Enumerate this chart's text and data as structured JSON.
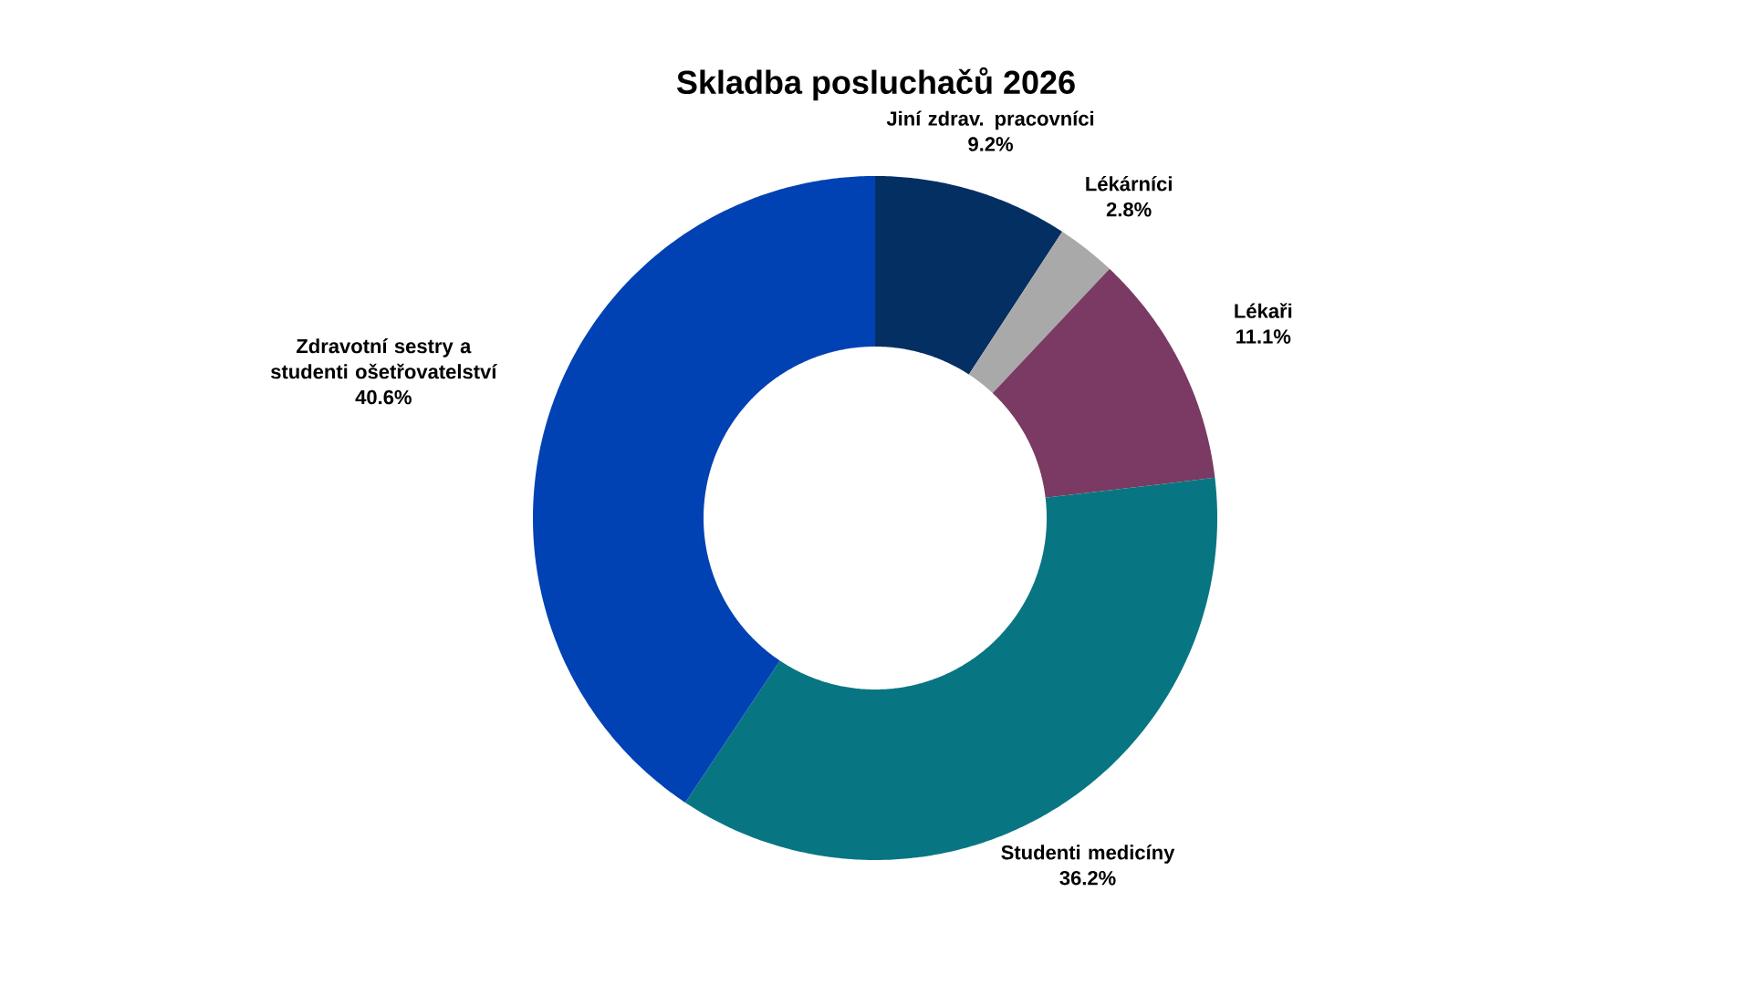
{
  "chart_data": {
    "type": "donut",
    "title": "Skladba posluchačů 2026",
    "categories": [
      "Jiní zdrav. pracovníci",
      "Lékárníci",
      "Lékaři",
      "Studenti medicíny",
      "Zdravotní sestry a studenti ošetřovatelství"
    ],
    "values": [
      9.2,
      2.8,
      11.1,
      36.2,
      40.6
    ],
    "value_labels": [
      "9.2%",
      "2.8%",
      "11.1%",
      "36.2%",
      "40.6%"
    ],
    "colors": [
      "#042f63",
      "#a9a9a9",
      "#7a3a63",
      "#077682",
      "#0042b3"
    ]
  }
}
